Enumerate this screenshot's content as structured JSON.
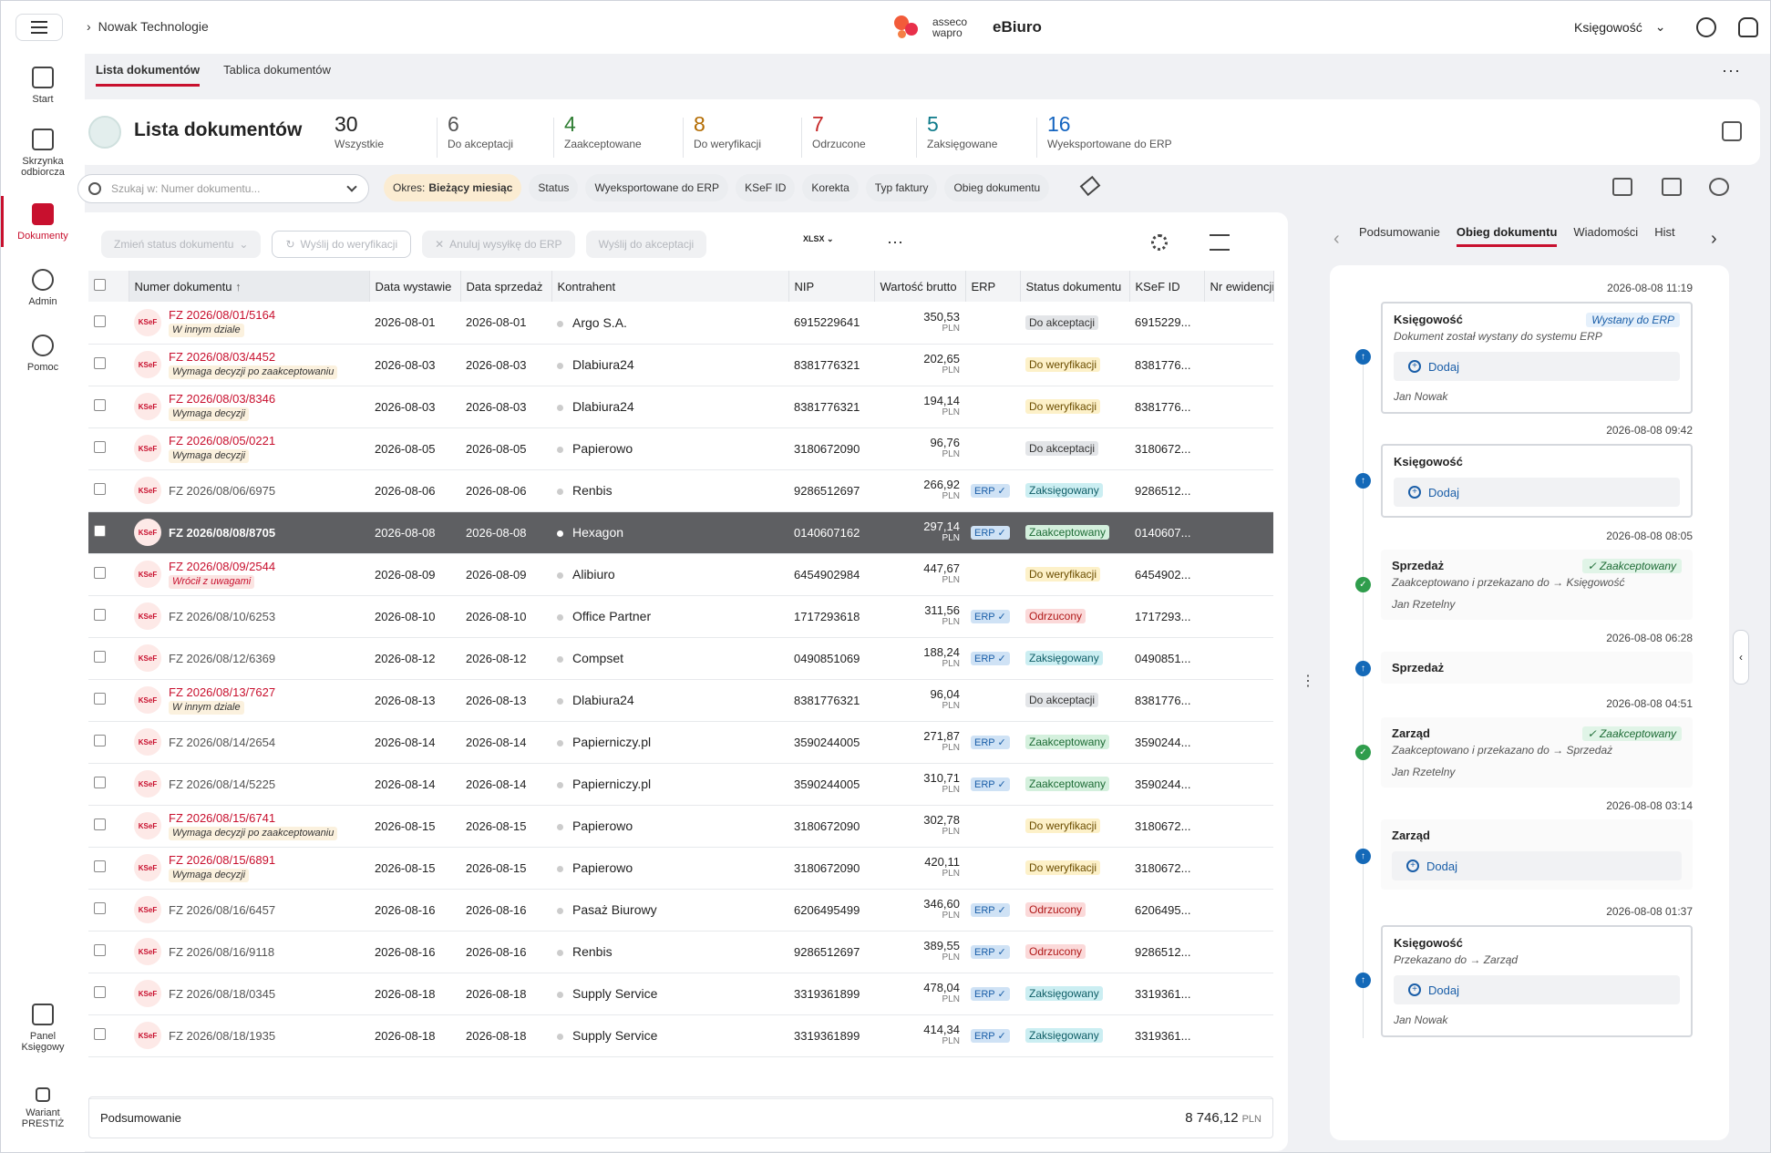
{
  "app": {
    "breadcrumb": "Nowak Technologie",
    "logo_line1": "asseco",
    "logo_line2": "wapro",
    "product": "eBiuro",
    "account": "Księgowość"
  },
  "sidebar": {
    "items": [
      {
        "label": "Start"
      },
      {
        "label": "Skrzynka odbiorcza"
      },
      {
        "label": "Dokumenty"
      },
      {
        "label": "Admin"
      },
      {
        "label": "Pomoc"
      },
      {
        "label": "Panel Księgowy"
      },
      {
        "label": "Wariant PRESTIŻ"
      }
    ]
  },
  "page_tabs": [
    "Lista dokumentów",
    "Tablica dokumentów"
  ],
  "header": {
    "title": "Lista dokumentów"
  },
  "stats": [
    {
      "count": "30",
      "label": "Wszystkie",
      "color": "#222222"
    },
    {
      "count": "6",
      "label": "Do akceptacji",
      "color": "#555555"
    },
    {
      "count": "4",
      "label": "Zaakceptowane",
      "color": "#2e7d32"
    },
    {
      "count": "8",
      "label": "Do weryfikacji",
      "color": "#b36b00"
    },
    {
      "count": "7",
      "label": "Odrzucone",
      "color": "#c62828"
    },
    {
      "count": "5",
      "label": "Zaksięgowane",
      "color": "#0d7a8a"
    },
    {
      "count": "16",
      "label": "Wyeksportowane do ERP",
      "color": "#1565c0"
    }
  ],
  "search": {
    "placeholder": "Szukaj w: Numer dokumentu..."
  },
  "filters": {
    "period_label": "Okres:",
    "period_value": "Bieżący miesiąc",
    "chips": [
      "Status",
      "Wyeksportowane do ERP",
      "KSeF ID",
      "Korekta",
      "Typ faktury",
      "Obieg dokumentu"
    ]
  },
  "toolbar": {
    "change_status": "Zmień status dokumentu",
    "send_verify": "Wyślij do weryfikacji",
    "cancel_erp": "Anuluj wysyłkę do ERP",
    "send_accept": "Wyślij do akceptacji",
    "xlsx": "XLSX"
  },
  "table": {
    "columns": [
      "Numer dokumentu",
      "Data wystawie",
      "Data sprzedaż",
      "Kontrahent",
      "NIP",
      "Wartość brutto",
      "ERP",
      "Status dokumentu",
      "KSeF ID",
      "Nr ewidencji E"
    ],
    "currency": "PLN",
    "rows": [
      {
        "num": "FZ 2026/08/01/5164",
        "note": "W innym dziale",
        "noteRed": false,
        "red": true,
        "d1": "2026-08-01",
        "d2": "2026-08-01",
        "k": "Argo S.A.",
        "nip": "6915229641",
        "amt": "350,53",
        "erp": false,
        "status": "Do akceptacji",
        "sc": "acc",
        "ksef": "6915229..."
      },
      {
        "num": "FZ 2026/08/03/4452",
        "note": "Wymaga decyzji po zaakceptowaniu",
        "noteRed": false,
        "red": true,
        "d1": "2026-08-03",
        "d2": "2026-08-03",
        "k": "Dlabiura24",
        "nip": "8381776321",
        "amt": "202,65",
        "erp": false,
        "status": "Do weryfikacji",
        "sc": "wer",
        "ksef": "8381776..."
      },
      {
        "num": "FZ 2026/08/03/8346",
        "note": "Wymaga decyzji",
        "noteRed": false,
        "red": true,
        "d1": "2026-08-03",
        "d2": "2026-08-03",
        "k": "Dlabiura24",
        "nip": "8381776321",
        "amt": "194,14",
        "erp": false,
        "status": "Do weryfikacji",
        "sc": "wer",
        "ksef": "8381776..."
      },
      {
        "num": "FZ 2026/08/05/0221",
        "note": "Wymaga decyzji",
        "noteRed": false,
        "red": true,
        "d1": "2026-08-05",
        "d2": "2026-08-05",
        "k": "Papierowo",
        "nip": "3180672090",
        "amt": "96,76",
        "erp": false,
        "status": "Do akceptacji",
        "sc": "acc",
        "ksef": "3180672..."
      },
      {
        "num": "FZ 2026/08/06/6975",
        "note": "",
        "noteRed": false,
        "red": false,
        "d1": "2026-08-06",
        "d2": "2026-08-06",
        "k": "Renbis",
        "nip": "9286512697",
        "amt": "266,92",
        "erp": true,
        "status": "Zaksięgowany",
        "sc": "zks",
        "ksef": "9286512..."
      },
      {
        "num": "FZ 2026/08/08/8705",
        "note": "",
        "noteRed": false,
        "red": false,
        "sel": true,
        "d1": "2026-08-08",
        "d2": "2026-08-08",
        "k": "Hexagon",
        "nip": "0140607162",
        "amt": "297,14",
        "erp": true,
        "status": "Zaakceptowany",
        "sc": "zak",
        "ksef": "0140607..."
      },
      {
        "num": "FZ 2026/08/09/2544",
        "note": "Wrócił z uwagami",
        "noteRed": true,
        "red": true,
        "d1": "2026-08-09",
        "d2": "2026-08-09",
        "k": "Alibiuro",
        "nip": "6454902984",
        "amt": "447,67",
        "erp": false,
        "status": "Do weryfikacji",
        "sc": "wer",
        "ksef": "6454902..."
      },
      {
        "num": "FZ 2026/08/10/6253",
        "note": "",
        "noteRed": false,
        "red": false,
        "d1": "2026-08-10",
        "d2": "2026-08-10",
        "k": "Office Partner",
        "nip": "1717293618",
        "amt": "311,56",
        "erp": true,
        "status": "Odrzucony",
        "sc": "odr",
        "ksef": "1717293..."
      },
      {
        "num": "FZ 2026/08/12/6369",
        "note": "",
        "noteRed": false,
        "red": false,
        "d1": "2026-08-12",
        "d2": "2026-08-12",
        "k": "Compset",
        "nip": "0490851069",
        "amt": "188,24",
        "erp": true,
        "status": "Zaksięgowany",
        "sc": "zks",
        "ksef": "0490851..."
      },
      {
        "num": "FZ 2026/08/13/7627",
        "note": "W innym dziale",
        "noteRed": false,
        "red": true,
        "d1": "2026-08-13",
        "d2": "2026-08-13",
        "k": "Dlabiura24",
        "nip": "8381776321",
        "amt": "96,04",
        "erp": false,
        "status": "Do akceptacji",
        "sc": "acc",
        "ksef": "8381776..."
      },
      {
        "num": "FZ 2026/08/14/2654",
        "note": "",
        "noteRed": false,
        "red": false,
        "d1": "2026-08-14",
        "d2": "2026-08-14",
        "k": "Papierniczy.pl",
        "nip": "3590244005",
        "amt": "271,87",
        "erp": true,
        "status": "Zaakceptowany",
        "sc": "zak",
        "ksef": "3590244..."
      },
      {
        "num": "FZ 2026/08/14/5225",
        "note": "",
        "noteRed": false,
        "red": false,
        "d1": "2026-08-14",
        "d2": "2026-08-14",
        "k": "Papierniczy.pl",
        "nip": "3590244005",
        "amt": "310,71",
        "erp": true,
        "status": "Zaakceptowany",
        "sc": "zak",
        "ksef": "3590244..."
      },
      {
        "num": "FZ 2026/08/15/6741",
        "note": "Wymaga decyzji po zaakceptowaniu",
        "noteRed": false,
        "red": true,
        "d1": "2026-08-15",
        "d2": "2026-08-15",
        "k": "Papierowo",
        "nip": "3180672090",
        "amt": "302,78",
        "erp": false,
        "status": "Do weryfikacji",
        "sc": "wer",
        "ksef": "3180672..."
      },
      {
        "num": "FZ 2026/08/15/6891",
        "note": "Wymaga decyzji",
        "noteRed": false,
        "red": true,
        "d1": "2026-08-15",
        "d2": "2026-08-15",
        "k": "Papierowo",
        "nip": "3180672090",
        "amt": "420,11",
        "erp": false,
        "status": "Do weryfikacji",
        "sc": "wer",
        "ksef": "3180672..."
      },
      {
        "num": "FZ 2026/08/16/6457",
        "note": "",
        "noteRed": false,
        "red": false,
        "d1": "2026-08-16",
        "d2": "2026-08-16",
        "k": "Pasaż Biurowy",
        "nip": "6206495499",
        "amt": "346,60",
        "erp": true,
        "status": "Odrzucony",
        "sc": "odr",
        "ksef": "6206495..."
      },
      {
        "num": "FZ 2026/08/16/9118",
        "note": "",
        "noteRed": false,
        "red": false,
        "d1": "2026-08-16",
        "d2": "2026-08-16",
        "k": "Renbis",
        "nip": "9286512697",
        "amt": "389,55",
        "erp": true,
        "status": "Odrzucony",
        "sc": "odr",
        "ksef": "9286512..."
      },
      {
        "num": "FZ 2026/08/18/0345",
        "note": "",
        "noteRed": false,
        "red": false,
        "d1": "2026-08-18",
        "d2": "2026-08-18",
        "k": "Supply Service",
        "nip": "3319361899",
        "amt": "478,04",
        "erp": true,
        "status": "Zaksięgowany",
        "sc": "zks",
        "ksef": "3319361..."
      },
      {
        "num": "FZ 2026/08/18/1935",
        "note": "",
        "noteRed": false,
        "red": false,
        "d1": "2026-08-18",
        "d2": "2026-08-18",
        "k": "Supply Service",
        "nip": "3319361899",
        "amt": "414,34",
        "erp": true,
        "status": "Zaksięgowany",
        "sc": "zks",
        "ksef": "3319361..."
      }
    ],
    "erp_label": "ERP",
    "ksef_badge": "KSeF"
  },
  "summary": {
    "label": "Podsumowanie",
    "total": "8 746,12",
    "currency": "PLN"
  },
  "right": {
    "tabs": [
      "Podsumowanie",
      "Obieg dokumentu",
      "Wiadomości",
      "Hist"
    ],
    "events": [
      {
        "time": "2026-08-08 11:19",
        "who": "Księgowość",
        "badge": "Wystany do ERP",
        "badgeType": "erp",
        "text": "Dokument został wystany do systemu ERP",
        "add": "Dodaj",
        "by": "Jan Nowak",
        "dot": "up",
        "boxed": true
      },
      {
        "time": "2026-08-08 09:42",
        "who": "Księgowość",
        "badge": "",
        "badgeType": "",
        "text": "",
        "add": "Dodaj",
        "by": "",
        "dot": "up",
        "boxed": true
      },
      {
        "time": "2026-08-08 08:05",
        "who": "Sprzedaż",
        "badge": "✓ Zaakceptowany",
        "badgeType": "zak",
        "text": "Zaakceptowano i przekazano do → Księgowość",
        "add": "",
        "by": "Jan Rzetelny",
        "dot": "ok",
        "boxed": false
      },
      {
        "time": "2026-08-08 06:28",
        "who": "Sprzedaż",
        "badge": "",
        "badgeType": "",
        "text": "",
        "add": "",
        "by": "",
        "dot": "up",
        "boxed": false
      },
      {
        "time": "2026-08-08 04:51",
        "who": "Zarząd",
        "badge": "✓ Zaakceptowany",
        "badgeType": "zak",
        "text": "Zaakceptowano i przekazano do → Sprzedaż",
        "add": "",
        "by": "Jan Rzetelny",
        "dot": "ok",
        "boxed": false
      },
      {
        "time": "2026-08-08 03:14",
        "who": "Zarząd",
        "badge": "",
        "badgeType": "",
        "text": "",
        "add": "Dodaj",
        "by": "",
        "dot": "up",
        "boxed": false
      },
      {
        "time": "2026-08-08 01:37",
        "who": "Księgowość",
        "badge": "",
        "badgeType": "",
        "text": "Przekazano do → Zarząd",
        "add": "Dodaj",
        "by": "Jan Nowak",
        "dot": "up",
        "boxed": true
      }
    ]
  }
}
